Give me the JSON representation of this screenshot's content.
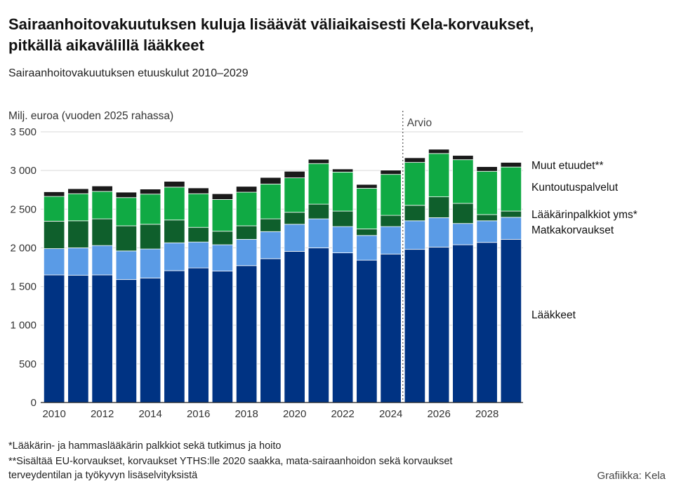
{
  "header": {
    "title_line1": "Sairaanhoitovakuutuksen kuluja lisäävät väliaikaisesti Kela-korvaukset,",
    "title_line2": "pitkällä aikavälillä lääkkeet",
    "subtitle": "Sairaanhoitovakuutuksen etuuskulut 2010–2029"
  },
  "footer": {
    "note1": "*Lääkärin- ja hammaslääkärin palkkiot sekä tutkimus ja hoito",
    "note2a": "**Sisältää EU-korvaukset, korvaukset YTHS:lle 2020 saakka, mata-sairaanhoidon sekä korvaukset",
    "note2b": "terveydentilan ja työkyvyn lisäselvityksistä",
    "credit": "Grafiikka: Kela"
  },
  "chart_data": {
    "type": "bar",
    "stacked": true,
    "ylabel": "Milj. euroa (vuoden 2025 rahassa)",
    "ylim": [
      0,
      3500
    ],
    "yticks": [
      0,
      500,
      1000,
      1500,
      2000,
      2500,
      3000,
      3500
    ],
    "ytick_labels": [
      "0",
      "500",
      "1 000",
      "1 500",
      "2 000",
      "2 500",
      "3 000",
      "3 500"
    ],
    "grid": true,
    "estimate_label": "Arvio",
    "estimate_start": "2025",
    "categories": [
      "2010",
      "2011",
      "2012",
      "2013",
      "2014",
      "2015",
      "2016",
      "2017",
      "2018",
      "2019",
      "2020",
      "2021",
      "2022",
      "2023",
      "2024",
      "2025",
      "2026",
      "2027",
      "2028",
      "2029"
    ],
    "xtick_labels": [
      "2010",
      "2012",
      "2014",
      "2016",
      "2018",
      "2020",
      "2022",
      "2024",
      "2026",
      "2028"
    ],
    "series": [
      {
        "name": "Lääkkeet",
        "color": "#003383",
        "values": [
          1650,
          1645,
          1650,
          1590,
          1610,
          1705,
          1740,
          1700,
          1770,
          1860,
          1955,
          2000,
          1935,
          1840,
          1920,
          1980,
          2010,
          2040,
          2070,
          2110
        ]
      },
      {
        "name": "Matkakorvaukset",
        "color": "#5a9be6",
        "values": [
          340,
          355,
          380,
          370,
          375,
          360,
          335,
          340,
          340,
          350,
          350,
          375,
          340,
          320,
          355,
          370,
          380,
          275,
          280,
          285
        ]
      },
      {
        "name": "Lääkärinpalkkiot yms*",
        "color": "#0f5f2c",
        "values": [
          355,
          350,
          345,
          325,
          320,
          295,
          190,
          175,
          175,
          165,
          155,
          190,
          200,
          85,
          145,
          200,
          270,
          260,
          80,
          80
        ]
      },
      {
        "name": "Kuntoutuspalvelut",
        "color": "#10aa44",
        "values": [
          320,
          350,
          355,
          365,
          390,
          425,
          435,
          410,
          435,
          450,
          445,
          525,
          505,
          525,
          530,
          555,
          560,
          565,
          560,
          570
        ]
      },
      {
        "name": "Muut etuudet**",
        "color": "#1a1a1a",
        "values": [
          60,
          65,
          70,
          70,
          65,
          75,
          75,
          75,
          75,
          85,
          85,
          55,
          40,
          50,
          55,
          60,
          55,
          55,
          60,
          60
        ]
      }
    ],
    "legend_placement": "right"
  }
}
